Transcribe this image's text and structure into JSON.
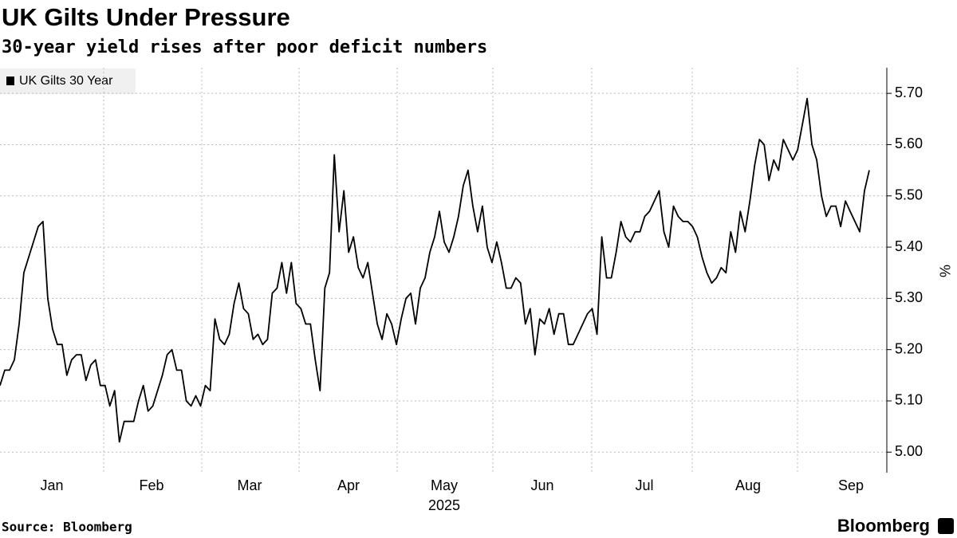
{
  "chart_data": {
    "type": "line",
    "title": "UK Gilts Under Pressure",
    "subtitle": "30-year yield rises after poor deficit numbers",
    "x_labels": [
      "Jan",
      "Feb",
      "Mar",
      "Apr",
      "May",
      "Jun",
      "Jul",
      "Aug",
      "Sep"
    ],
    "x_year": "2025",
    "y_label": "%",
    "series": [
      {
        "name": "UK Gilts 30 Year",
        "color": "#000000",
        "values": [
          5.13,
          5.16,
          5.16,
          5.18,
          5.25,
          5.35,
          5.38,
          5.41,
          5.44,
          5.45,
          5.3,
          5.24,
          5.21,
          5.21,
          5.15,
          5.18,
          5.19,
          5.19,
          5.14,
          5.17,
          5.18,
          5.13,
          5.13,
          5.09,
          5.12,
          5.02,
          5.06,
          5.06,
          5.06,
          5.1,
          5.13,
          5.08,
          5.09,
          5.12,
          5.15,
          5.19,
          5.2,
          5.16,
          5.16,
          5.1,
          5.09,
          5.11,
          5.09,
          5.13,
          5.12,
          5.26,
          5.22,
          5.21,
          5.23,
          5.29,
          5.33,
          5.28,
          5.27,
          5.22,
          5.23,
          5.21,
          5.22,
          5.31,
          5.32,
          5.37,
          5.31,
          5.37,
          5.29,
          5.28,
          5.25,
          5.25,
          5.18,
          5.12,
          5.32,
          5.35,
          5.58,
          5.43,
          5.51,
          5.39,
          5.42,
          5.36,
          5.34,
          5.37,
          5.31,
          5.25,
          5.22,
          5.27,
          5.25,
          5.21,
          5.26,
          5.3,
          5.31,
          5.25,
          5.32,
          5.34,
          5.39,
          5.42,
          5.47,
          5.41,
          5.39,
          5.42,
          5.46,
          5.52,
          5.55,
          5.48,
          5.43,
          5.48,
          5.4,
          5.37,
          5.41,
          5.37,
          5.32,
          5.32,
          5.34,
          5.33,
          5.25,
          5.28,
          5.19,
          5.26,
          5.25,
          5.28,
          5.23,
          5.27,
          5.27,
          5.21,
          5.21,
          5.23,
          5.25,
          5.27,
          5.28,
          5.23,
          5.42,
          5.34,
          5.34,
          5.39,
          5.45,
          5.42,
          5.41,
          5.43,
          5.43,
          5.46,
          5.47,
          5.49,
          5.51,
          5.43,
          5.4,
          5.48,
          5.46,
          5.45,
          5.45,
          5.44,
          5.42,
          5.38,
          5.35,
          5.33,
          5.34,
          5.36,
          5.35,
          5.43,
          5.39,
          5.47,
          5.43,
          5.49,
          5.56,
          5.61,
          5.6,
          5.53,
          5.57,
          5.55,
          5.61,
          5.59,
          5.57,
          5.59,
          5.64,
          5.69,
          5.6,
          5.57,
          5.5,
          5.46,
          5.48,
          5.48,
          5.44,
          5.49,
          5.47,
          5.45,
          5.43,
          5.51,
          5.55
        ]
      }
    ],
    "ylim": [
      4.96,
      5.75
    ],
    "yticks": [
      {
        "value": 5.0,
        "label": "5.00"
      },
      {
        "value": 5.1,
        "label": "5.10"
      },
      {
        "value": 5.2,
        "label": "5.20"
      },
      {
        "value": 5.3,
        "label": "5.30"
      },
      {
        "value": 5.4,
        "label": "5.40"
      },
      {
        "value": 5.5,
        "label": "5.50"
      },
      {
        "value": 5.6,
        "label": "5.60"
      },
      {
        "value": 5.7,
        "label": "5.70"
      }
    ],
    "grid": true,
    "legend": "top-left",
    "source": "Source: Bloomberg",
    "brand": "Bloomberg"
  }
}
